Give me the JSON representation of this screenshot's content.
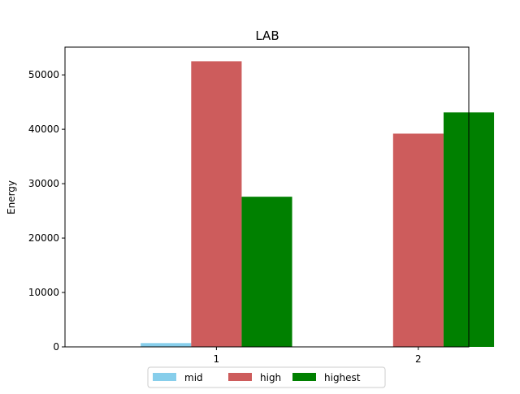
{
  "chart_data": {
    "type": "bar",
    "title": "LAB",
    "xlabel": "",
    "ylabel": "Energy",
    "categories": [
      "1",
      "2"
    ],
    "series": [
      {
        "name": "mid",
        "color": "#87ceeb",
        "values": [
          700,
          0
        ]
      },
      {
        "name": "high",
        "color": "#cd5c5c",
        "values": [
          52500,
          39200
        ]
      },
      {
        "name": "highest",
        "color": "#008000",
        "values": [
          27600,
          43100
        ]
      }
    ],
    "ylim": [
      0,
      55100
    ],
    "yticks": [
      0,
      10000,
      20000,
      30000,
      40000,
      50000
    ],
    "ytick_labels": [
      "0",
      "10000",
      "20000",
      "30000",
      "40000",
      "50000"
    ],
    "grid": false,
    "legend_position": "bottom-center"
  }
}
